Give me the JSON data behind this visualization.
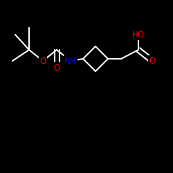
{
  "background_color": "#000000",
  "bond_color": "#ffffff",
  "atom_colors": {
    "O": "#ff0000",
    "N": "#0000ff"
  },
  "bond_width": 1.5,
  "figsize": [
    2.5,
    2.5
  ],
  "dpi": 100,
  "font_size": 8.5
}
